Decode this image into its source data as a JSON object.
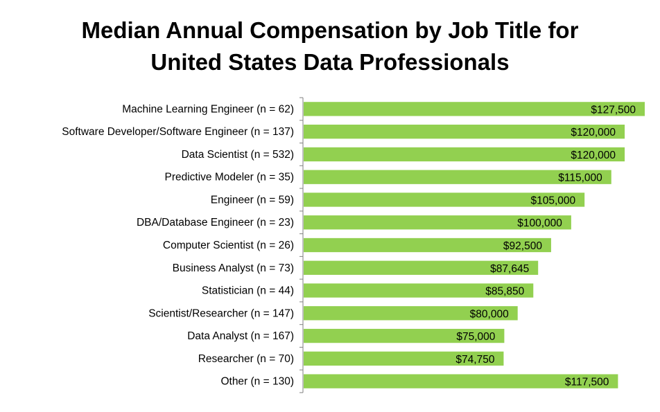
{
  "chart_data": {
    "type": "bar",
    "orientation": "horizontal",
    "title_lines": [
      "Median Annual Compensation by Job Title for",
      "United States Data Professionals"
    ],
    "xlabel": "",
    "ylabel": "",
    "grid": false,
    "bar_color": "#92d050",
    "categories": [
      "Machine Learning Engineer (n =  62)",
      "Software Developer/Software Engineer (n =  137)",
      "Data Scientist (n =  532)",
      "Predictive Modeler (n =  35)",
      "Engineer (n =  59)",
      "DBA/Database Engineer (n =  23)",
      "Computer Scientist (n =  26)",
      "Business Analyst (n =  73)",
      "Statistician (n =  44)",
      "Scientist/Researcher (n =  147)",
      "Data Analyst (n =  167)",
      "Researcher (n =  70)",
      "Other (n =  130)"
    ],
    "values": [
      127500,
      120000,
      120000,
      115000,
      105000,
      100000,
      92500,
      87645,
      85850,
      80000,
      75000,
      74750,
      117500
    ],
    "value_labels": [
      "$127,500",
      "$120,000",
      "$120,000",
      "$115,000",
      "$105,000",
      "$100,000",
      "$92,500",
      "$87,645",
      "$85,850",
      "$80,000",
      "$75,000",
      "$74,750",
      "$117,500"
    ],
    "xlim": [
      0,
      127500
    ]
  }
}
